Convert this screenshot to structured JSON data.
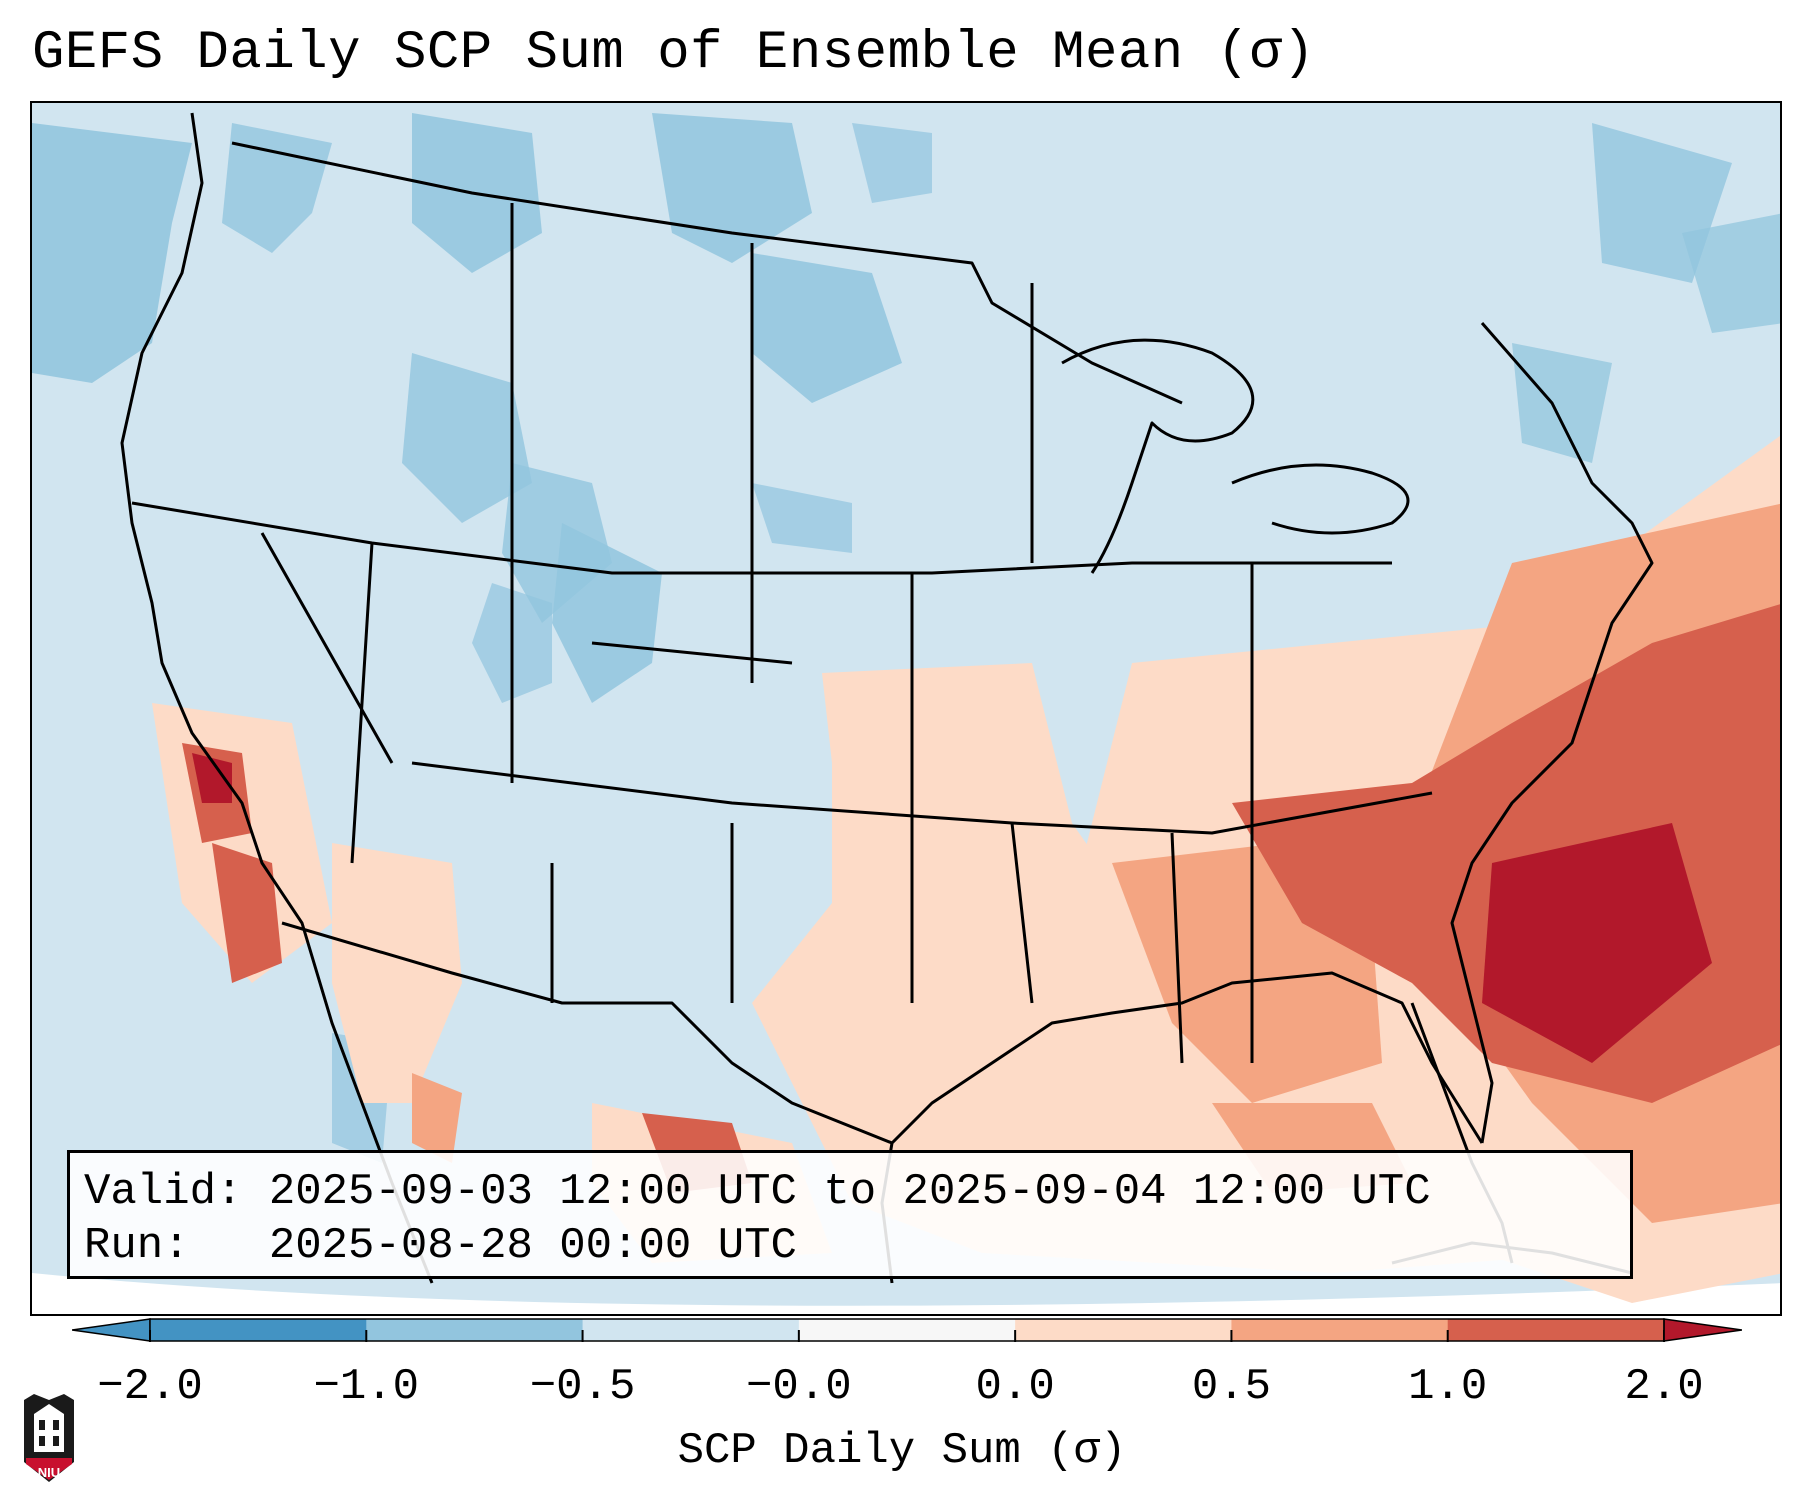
{
  "title": "GEFS Daily SCP Sum of Ensemble Mean (σ)",
  "info": {
    "valid_line": "Valid: 2025-09-03 12:00 UTC to 2025-09-04 12:00 UTC",
    "run_line": "Run:   2025-08-28 00:00 UTC"
  },
  "colorbar": {
    "label": "SCP Daily Sum (σ)",
    "ticks": [
      "−2.0",
      "−1.0",
      "−0.5",
      "−0.0",
      "0.0",
      "0.5",
      "1.0",
      "2.0"
    ],
    "colors": [
      "#4393c3",
      "#92c5de",
      "#d1e5f0",
      "#f7f7f7",
      "#fddbc7",
      "#f4a582",
      "#d6604d",
      "#b2182b"
    ]
  },
  "logo": {
    "text": "NIU",
    "color": "#c8102e"
  }
}
